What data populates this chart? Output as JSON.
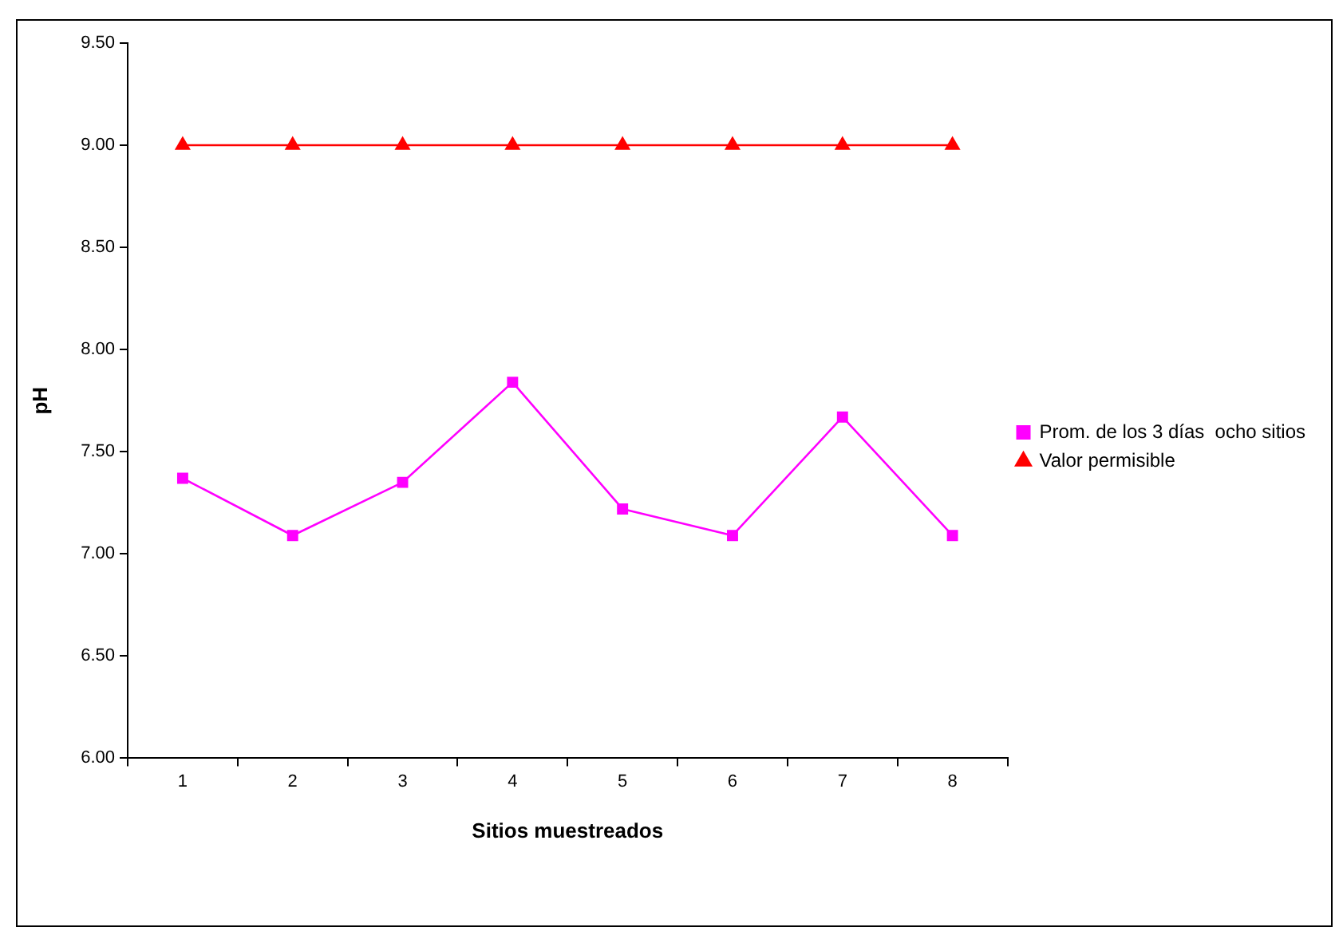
{
  "chart_data": {
    "type": "line",
    "xlabel": "Sitios muestreados",
    "ylabel": "pH",
    "categories": [
      "1",
      "2",
      "3",
      "4",
      "5",
      "6",
      "7",
      "8"
    ],
    "series": [
      {
        "name": "Prom. de los 3 días  ocho sitios",
        "color": "#ff00ff",
        "marker": "square",
        "values": [
          7.37,
          7.09,
          7.35,
          7.84,
          7.22,
          7.09,
          7.67,
          7.09
        ]
      },
      {
        "name": "Valor permisible",
        "color": "#ff0000",
        "marker": "triangle",
        "values": [
          9.0,
          9.0,
          9.0,
          9.0,
          9.0,
          9.0,
          9.0,
          9.0
        ]
      }
    ],
    "ylim": [
      6.0,
      9.5
    ],
    "yticks": [
      {
        "value": 6,
        "label": "6.00"
      },
      {
        "value": 6.5,
        "label": "6.50"
      },
      {
        "value": 7,
        "label": "7.00"
      },
      {
        "value": 7.5,
        "label": "7.50"
      },
      {
        "value": 8,
        "label": "8.00"
      },
      {
        "value": 8.5,
        "label": "8.50"
      },
      {
        "value": 9,
        "label": "9.00"
      },
      {
        "value": 9.5,
        "label": "9.50"
      }
    ],
    "grid": false,
    "legend": "right",
    "line_style": "solid"
  }
}
